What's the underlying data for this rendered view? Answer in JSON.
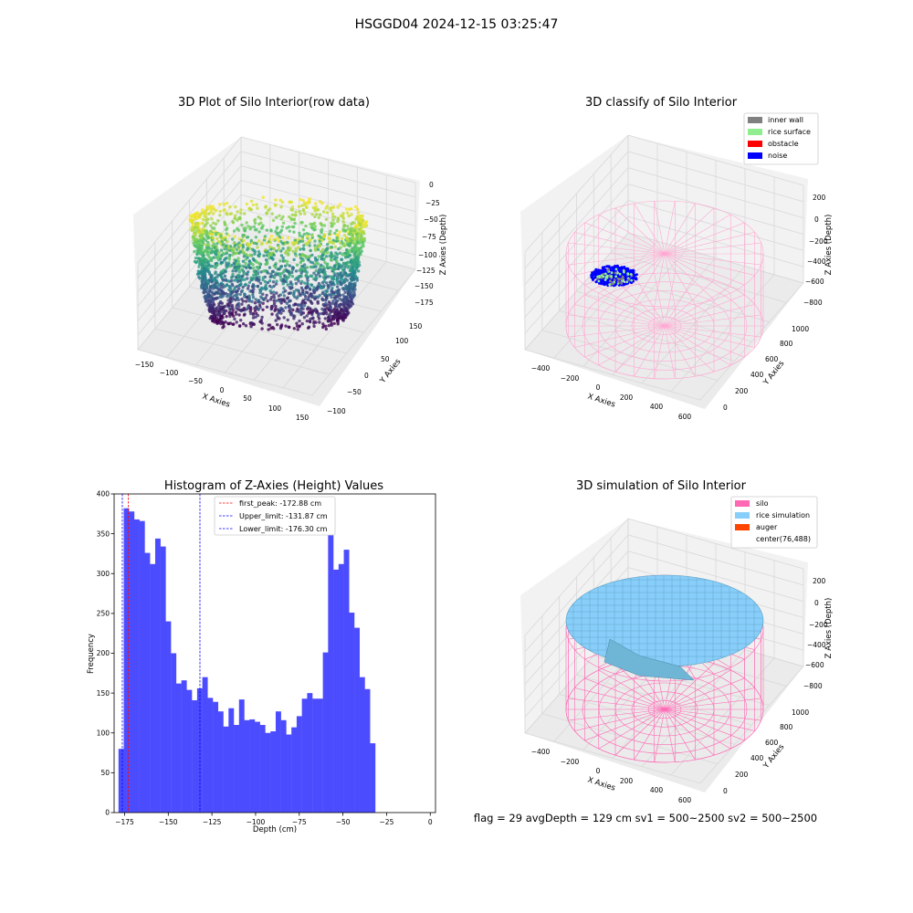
{
  "figure": {
    "suptitle": "HSGGD04 2024-12-15 03:25:47",
    "status_line": "flag = 29  avgDepth = 129 cm  sv1 = 500~2500  sv2 = 500~2500"
  },
  "chart_data": [
    {
      "type": "scatter",
      "projection": "3d",
      "title": "3D Plot of Silo Interior(row data)",
      "xlabel": "X Axies",
      "ylabel": "Y Axies",
      "zlabel": "Z Axies (Depth)",
      "xticks": [
        "−150",
        "−100",
        "−50",
        "0",
        "50",
        "100",
        "150"
      ],
      "yticks": [
        "−100",
        "−50",
        "0",
        "50",
        "100",
        "150"
      ],
      "zticks": [
        "0",
        "−25",
        "−50",
        "−75",
        "−100",
        "−125",
        "−150",
        "−175"
      ],
      "colormap": "viridis",
      "xlim": [
        -160,
        160
      ],
      "ylim": [
        -110,
        160
      ],
      "zlim": [
        -185,
        0
      ]
    },
    {
      "type": "scatter",
      "projection": "3d",
      "title": "3D classify of Silo Interior",
      "xlabel": "X Axies",
      "ylabel": "Y Axies",
      "zlabel": "Z Axies (Depth)",
      "xticks": [
        "−400",
        "−200",
        "0",
        "200",
        "400",
        "600"
      ],
      "yticks": [
        "0",
        "200",
        "400",
        "600",
        "800",
        "1000"
      ],
      "zticks": [
        "200",
        "0",
        "−200",
        "−400",
        "−600",
        "−800"
      ],
      "legend": [
        {
          "label": "inner wall",
          "color": "#808080"
        },
        {
          "label": "rice surface",
          "color": "#90ee90"
        },
        {
          "label": "obstacle",
          "color": "#ff0000"
        },
        {
          "label": "noise",
          "color": "#0000ff"
        }
      ],
      "legend_position": "top-right",
      "cylinder_color": "#ff77b4"
    },
    {
      "type": "bar",
      "title": "Histogram of Z-Axies (Height) Values",
      "xlabel": "Depth (cm)",
      "ylabel": "Frequency",
      "xlim": [
        -181,
        3
      ],
      "ylim": [
        0,
        400
      ],
      "xticks": [
        -175,
        -150,
        -125,
        -100,
        -75,
        -50,
        -25,
        0
      ],
      "xtick_labels": [
        "−175",
        "−150",
        "−125",
        "−100",
        "−75",
        "−50",
        "−25",
        "0"
      ],
      "yticks": [
        0,
        50,
        100,
        150,
        200,
        250,
        300,
        350,
        400
      ],
      "bar_color": "#4c4cff",
      "bins": {
        "start": -178.5,
        "width": 3.0
      },
      "values": [
        80,
        382,
        378,
        368,
        366,
        326,
        312,
        344,
        334,
        240,
        200,
        162,
        166,
        154,
        141,
        156,
        170,
        144,
        139,
        127,
        108,
        131,
        110,
        142,
        116,
        117,
        114,
        110,
        100,
        102,
        127,
        116,
        98,
        107,
        121,
        143,
        150,
        143,
        143,
        201,
        358,
        305,
        312,
        330,
        251,
        232,
        170,
        155,
        87
      ],
      "reference_lines": [
        {
          "label": "first_peak: -172.88 cm",
          "x": -172.88,
          "color": "#ff0000"
        },
        {
          "label": "Upper_limit: -131.87 cm",
          "x": -131.87,
          "color": "#0000ff"
        },
        {
          "label": "Lower_limit: -176.30 cm",
          "x": -176.3,
          "color": "#0000ff"
        }
      ],
      "legend_position": "top-center"
    },
    {
      "type": "surface",
      "projection": "3d",
      "title": "3D simulation of Silo Interior",
      "xlabel": "X Axies",
      "ylabel": "Y Axies",
      "zlabel": "Z Axies (Depth)",
      "xticks": [
        "−400",
        "−200",
        "0",
        "200",
        "400",
        "600"
      ],
      "yticks": [
        "0",
        "200",
        "400",
        "600",
        "800",
        "1000"
      ],
      "zticks": [
        "200",
        "0",
        "−200",
        "−400",
        "−600",
        "−800"
      ],
      "legend": [
        {
          "label": "silo",
          "color": "#ff69b4"
        },
        {
          "label": "rice simulation",
          "color": "#87cefa"
        },
        {
          "label": "auger",
          "color": "#ff4500"
        },
        {
          "label": "center(76,488)",
          "color": "#ffffff"
        }
      ],
      "legend_position": "top-right"
    }
  ]
}
